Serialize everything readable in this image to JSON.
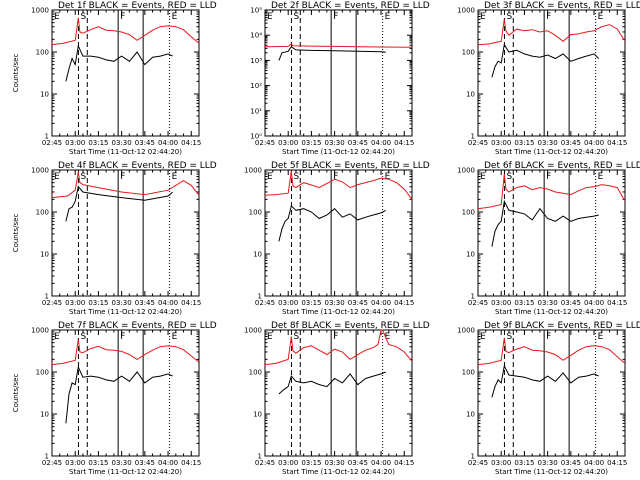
{
  "page": {
    "background": "#ffffff"
  },
  "colors": {
    "events": "#000000",
    "lld": "#e8191b",
    "axes": "#000000"
  },
  "chart_data": [
    {
      "type": "line",
      "title": "Det 1f BLACK = Events, RED = LLD",
      "ylabel": "Counts/sec",
      "xlabel": "Start Time (11-Oct-12 02:44:20)",
      "yscale": "log",
      "ylim": [
        1,
        1000
      ],
      "y_ticks": [
        "1",
        "10",
        "100",
        "1000"
      ],
      "x_tick_labels": [
        "02:45",
        "03:00",
        "03:15",
        "03:30",
        "03:45",
        "04:00",
        "04:15"
      ],
      "markers": [
        "E",
        "S",
        "F",
        "E"
      ],
      "series": [
        {
          "color": "#e8191b",
          "x": [
            "02:45",
            "02:52",
            "03:00",
            "03:02",
            "03:03",
            "03:05",
            "03:10",
            "03:15",
            "03:20",
            "03:25",
            "03:30",
            "03:35",
            "03:40",
            "03:45",
            "03:50",
            "03:55",
            "04:00",
            "04:05",
            "04:10",
            "04:15",
            "04:20"
          ],
          "y": [
            150,
            160,
            190,
            650,
            300,
            280,
            340,
            400,
            330,
            320,
            300,
            260,
            190,
            250,
            330,
            400,
            420,
            400,
            340,
            230,
            160
          ]
        },
        {
          "color": "#000000",
          "x": [
            "02:54",
            "02:56",
            "02:58",
            "03:00",
            "03:02",
            "03:05",
            "03:10",
            "03:15",
            "03:20",
            "03:25",
            "03:30",
            "03:35",
            "03:40",
            "03:45",
            "03:50",
            "03:55",
            "04:00",
            "04:03"
          ],
          "y": [
            20,
            40,
            70,
            50,
            140,
            80,
            80,
            75,
            65,
            60,
            80,
            60,
            100,
            50,
            75,
            80,
            90,
            80
          ]
        }
      ]
    },
    {
      "type": "line",
      "title": "Det 2f BLACK = Events, RED = LLD",
      "ylabel": "",
      "xlabel": "Start Time (11-Oct-12 02:44:20)",
      "yscale": "log",
      "ylim": [
        1,
        100000
      ],
      "y_ticks": [
        "10⁰",
        "10¹",
        "10²",
        "10³",
        "10⁴",
        "10⁵"
      ],
      "x_tick_labels": [
        "02:45",
        "03:00",
        "03:15",
        "03:30",
        "03:45",
        "04:00",
        "04:15"
      ],
      "markers": [
        "E",
        "S",
        "F",
        "E"
      ],
      "series": [
        {
          "color": "#e8191b",
          "x": [
            "02:45",
            "03:00",
            "03:02",
            "03:03",
            "03:15",
            "03:30",
            "03:45",
            "04:00",
            "04:20"
          ],
          "y": [
            3500,
            3600,
            4500,
            3800,
            3700,
            3600,
            3500,
            3400,
            3300
          ]
        },
        {
          "color": "#000000",
          "x": [
            "02:54",
            "02:56",
            "03:00",
            "03:02",
            "03:05",
            "03:15",
            "03:30",
            "03:45",
            "04:00",
            "04:03"
          ],
          "y": [
            1000,
            2000,
            2300,
            3500,
            2600,
            2500,
            2400,
            2300,
            2200,
            2100
          ]
        }
      ]
    },
    {
      "type": "line",
      "title": "Det 3f BLACK = Events, RED = LLD",
      "ylabel": "",
      "xlabel": "Start Time (11-Oct-12 02:44:20)",
      "yscale": "log",
      "ylim": [
        1,
        1000
      ],
      "y_ticks": [
        "1",
        "10",
        "100",
        "1000"
      ],
      "x_tick_labels": [
        "02:45",
        "03:00",
        "03:15",
        "03:30",
        "03:45",
        "04:00",
        "04:15"
      ],
      "markers": [
        "E",
        "S",
        "F",
        "E"
      ],
      "series": [
        {
          "color": "#e8191b",
          "x": [
            "02:45",
            "02:52",
            "03:00",
            "03:02",
            "03:03",
            "03:05",
            "03:10",
            "03:15",
            "03:20",
            "03:25",
            "03:30",
            "03:35",
            "03:40",
            "03:45",
            "03:50",
            "03:55",
            "04:00",
            "04:05",
            "04:10",
            "04:15",
            "04:20"
          ],
          "y": [
            150,
            155,
            180,
            600,
            320,
            250,
            350,
            320,
            340,
            300,
            320,
            250,
            180,
            260,
            270,
            300,
            320,
            400,
            450,
            350,
            180
          ]
        },
        {
          "color": "#000000",
          "x": [
            "02:54",
            "02:56",
            "02:58",
            "03:00",
            "03:02",
            "03:05",
            "03:10",
            "03:15",
            "03:20",
            "03:25",
            "03:30",
            "03:35",
            "03:40",
            "03:45",
            "03:50",
            "03:55",
            "04:00",
            "04:03"
          ],
          "y": [
            25,
            45,
            60,
            55,
            150,
            100,
            110,
            90,
            80,
            75,
            85,
            70,
            90,
            60,
            70,
            80,
            90,
            70
          ]
        }
      ]
    },
    {
      "type": "line",
      "title": "Det 4f BLACK = Events, RED = LLD",
      "ylabel": "Counts/sec",
      "xlabel": "Start Time (11-Oct-12 02:44:20)",
      "yscale": "log",
      "ylim": [
        1,
        1000
      ],
      "y_ticks": [
        "1",
        "10",
        "100",
        "1000"
      ],
      "x_tick_labels": [
        "02:45",
        "03:00",
        "03:15",
        "03:30",
        "03:45",
        "04:00",
        "04:15"
      ],
      "markers": [
        "E",
        "S",
        "F",
        "E"
      ],
      "series": [
        {
          "color": "#e8191b",
          "x": [
            "02:45",
            "02:55",
            "03:00",
            "03:02",
            "03:03",
            "03:05",
            "03:15",
            "03:30",
            "03:45",
            "04:00",
            "04:10",
            "04:15",
            "04:20"
          ],
          "y": [
            220,
            240,
            330,
            900,
            500,
            450,
            380,
            300,
            260,
            330,
            560,
            430,
            250
          ]
        },
        {
          "color": "#000000",
          "x": [
            "02:54",
            "02:56",
            "02:58",
            "03:00",
            "03:02",
            "03:05",
            "03:15",
            "03:30",
            "03:45",
            "04:00",
            "04:03"
          ],
          "y": [
            60,
            120,
            130,
            180,
            400,
            300,
            260,
            220,
            190,
            240,
            300
          ]
        }
      ]
    },
    {
      "type": "line",
      "title": "Det 5f BLACK = Events, RED = LLD",
      "ylabel": "",
      "xlabel": "Start Time (11-Oct-12 02:44:20)",
      "yscale": "log",
      "ylim": [
        1,
        1000
      ],
      "y_ticks": [
        "1",
        "10",
        "100",
        "1000"
      ],
      "x_tick_labels": [
        "02:45",
        "03:00",
        "03:15",
        "03:30",
        "03:45",
        "04:00",
        "04:15"
      ],
      "markers": [
        "E",
        "S",
        "F",
        "E"
      ],
      "series": [
        {
          "color": "#e8191b",
          "x": [
            "02:45",
            "02:52",
            "03:00",
            "03:02",
            "03:03",
            "03:05",
            "03:10",
            "03:15",
            "03:20",
            "03:25",
            "03:30",
            "03:35",
            "03:40",
            "03:45",
            "03:50",
            "03:55",
            "04:00",
            "04:05",
            "04:10",
            "04:15",
            "04:20"
          ],
          "y": [
            250,
            260,
            280,
            950,
            420,
            380,
            500,
            440,
            380,
            480,
            600,
            520,
            380,
            450,
            500,
            560,
            640,
            600,
            500,
            350,
            200
          ]
        },
        {
          "color": "#000000",
          "x": [
            "02:54",
            "02:56",
            "02:58",
            "03:00",
            "03:02",
            "03:05",
            "03:10",
            "03:15",
            "03:20",
            "03:25",
            "03:30",
            "03:35",
            "03:40",
            "03:45",
            "03:50",
            "03:55",
            "04:00",
            "04:03"
          ],
          "y": [
            20,
            40,
            60,
            70,
            140,
            110,
            120,
            100,
            70,
            85,
            120,
            75,
            90,
            65,
            75,
            85,
            95,
            110
          ]
        }
      ]
    },
    {
      "type": "line",
      "title": "Det 6f BLACK = Events, RED = LLD",
      "ylabel": "",
      "xlabel": "Start Time (11-Oct-12 02:44:20)",
      "yscale": "log",
      "ylim": [
        1,
        1000
      ],
      "y_ticks": [
        "1",
        "10",
        "100",
        "1000"
      ],
      "x_tick_labels": [
        "02:45",
        "03:00",
        "03:15",
        "03:30",
        "03:45",
        "04:00",
        "04:15"
      ],
      "markers": [
        "E",
        "S",
        "F",
        "E"
      ],
      "series": [
        {
          "color": "#e8191b",
          "x": [
            "02:45",
            "02:52",
            "03:00",
            "03:02",
            "03:03",
            "03:05",
            "03:10",
            "03:15",
            "03:20",
            "03:25",
            "03:30",
            "03:35",
            "03:40",
            "03:45",
            "03:50",
            "03:55",
            "04:00",
            "04:05",
            "04:10",
            "04:15",
            "04:20"
          ],
          "y": [
            120,
            130,
            150,
            800,
            350,
            300,
            380,
            420,
            340,
            380,
            350,
            300,
            280,
            260,
            320,
            380,
            400,
            450,
            420,
            380,
            180
          ]
        },
        {
          "color": "#000000",
          "x": [
            "02:54",
            "02:56",
            "02:58",
            "03:00",
            "03:02",
            "03:05",
            "03:10",
            "03:15",
            "03:20",
            "03:25",
            "03:30",
            "03:35",
            "03:40",
            "03:45",
            "03:50",
            "03:55",
            "04:00",
            "04:03"
          ],
          "y": [
            15,
            35,
            50,
            60,
            180,
            110,
            100,
            90,
            65,
            120,
            70,
            60,
            80,
            60,
            70,
            75,
            80,
            85
          ]
        }
      ]
    },
    {
      "type": "line",
      "title": "Det 7f BLACK = Events, RED = LLD",
      "ylabel": "Counts/sec",
      "xlabel": "Start Time (11-Oct-12 02:44:20)",
      "yscale": "log",
      "ylim": [
        1,
        1000
      ],
      "y_ticks": [
        "1",
        "10",
        "100",
        "1000"
      ],
      "x_tick_labels": [
        "02:45",
        "03:00",
        "03:15",
        "03:30",
        "03:45",
        "04:00",
        "04:15"
      ],
      "markers": [
        "E",
        "S",
        "F",
        "E"
      ],
      "series": [
        {
          "color": "#e8191b",
          "x": [
            "02:45",
            "02:52",
            "03:00",
            "03:02",
            "03:03",
            "03:05",
            "03:10",
            "03:15",
            "03:20",
            "03:25",
            "03:30",
            "03:35",
            "03:40",
            "03:45",
            "03:50",
            "03:55",
            "04:00",
            "04:05",
            "04:10",
            "04:15",
            "04:20"
          ],
          "y": [
            150,
            160,
            190,
            600,
            300,
            290,
            360,
            410,
            340,
            330,
            310,
            260,
            200,
            260,
            330,
            400,
            420,
            400,
            340,
            240,
            170
          ]
        },
        {
          "color": "#000000",
          "x": [
            "02:54",
            "02:56",
            "02:58",
            "03:00",
            "03:02",
            "03:05",
            "03:10",
            "03:15",
            "03:20",
            "03:25",
            "03:30",
            "03:35",
            "03:40",
            "03:45",
            "03:50",
            "03:55",
            "04:00",
            "04:03"
          ],
          "y": [
            6,
            30,
            55,
            50,
            130,
            75,
            80,
            75,
            65,
            60,
            80,
            60,
            100,
            55,
            75,
            80,
            90,
            80
          ]
        }
      ]
    },
    {
      "type": "line",
      "title": "Det 8f BLACK = Events, RED = LLD",
      "ylabel": "",
      "xlabel": "Start Time (11-Oct-12 02:44:20)",
      "yscale": "log",
      "ylim": [
        1,
        1000
      ],
      "y_ticks": [
        "1",
        "10",
        "100",
        "1000"
      ],
      "x_tick_labels": [
        "02:45",
        "03:00",
        "03:15",
        "03:30",
        "03:45",
        "04:00",
        "04:15"
      ],
      "markers": [
        "E",
        "S",
        "F",
        "E"
      ],
      "series": [
        {
          "color": "#e8191b",
          "x": [
            "02:45",
            "02:52",
            "03:00",
            "03:02",
            "03:03",
            "03:05",
            "03:10",
            "03:15",
            "03:20",
            "03:25",
            "03:30",
            "03:35",
            "03:40",
            "03:45",
            "03:50",
            "03:55",
            "03:58",
            "04:00",
            "04:01",
            "04:05",
            "04:10",
            "04:15",
            "04:20"
          ],
          "y": [
            150,
            160,
            200,
            700,
            320,
            280,
            380,
            420,
            330,
            260,
            350,
            300,
            200,
            260,
            330,
            380,
            450,
            1000,
            1000,
            450,
            400,
            300,
            180
          ]
        },
        {
          "color": "#000000",
          "x": [
            "02:54",
            "02:56",
            "02:58",
            "03:00",
            "03:02",
            "03:05",
            "03:10",
            "03:15",
            "03:20",
            "03:25",
            "03:30",
            "03:35",
            "03:40",
            "03:45",
            "03:50",
            "03:55",
            "04:00",
            "04:03"
          ],
          "y": [
            30,
            35,
            40,
            45,
            80,
            60,
            55,
            60,
            50,
            45,
            70,
            55,
            90,
            50,
            70,
            80,
            90,
            100
          ]
        }
      ]
    },
    {
      "type": "line",
      "title": "Det 9f BLACK = Events, RED = LLD",
      "ylabel": "",
      "xlabel": "Start Time (11-Oct-12 02:44:20)",
      "yscale": "log",
      "ylim": [
        1,
        1000
      ],
      "y_ticks": [
        "1",
        "10",
        "100",
        "1000"
      ],
      "x_tick_labels": [
        "02:45",
        "03:00",
        "03:15",
        "03:30",
        "03:45",
        "04:00",
        "04:15"
      ],
      "markers": [
        "E",
        "S",
        "F",
        "E"
      ],
      "series": [
        {
          "color": "#e8191b",
          "x": [
            "02:45",
            "02:52",
            "03:00",
            "03:02",
            "03:03",
            "03:05",
            "03:10",
            "03:15",
            "03:20",
            "03:25",
            "03:30",
            "03:35",
            "03:40",
            "03:45",
            "03:50",
            "03:55",
            "04:00",
            "04:05",
            "04:10",
            "04:15",
            "04:20"
          ],
          "y": [
            150,
            160,
            190,
            650,
            310,
            290,
            350,
            400,
            330,
            320,
            300,
            260,
            190,
            250,
            330,
            400,
            420,
            400,
            340,
            230,
            160
          ]
        },
        {
          "color": "#000000",
          "x": [
            "02:54",
            "02:56",
            "02:58",
            "03:00",
            "03:02",
            "03:05",
            "03:10",
            "03:15",
            "03:20",
            "03:25",
            "03:30",
            "03:35",
            "03:40",
            "03:45",
            "03:50",
            "03:55",
            "04:00",
            "04:03"
          ],
          "y": [
            25,
            45,
            65,
            55,
            140,
            85,
            80,
            75,
            65,
            60,
            80,
            60,
            95,
            55,
            75,
            80,
            90,
            80
          ]
        }
      ]
    }
  ]
}
